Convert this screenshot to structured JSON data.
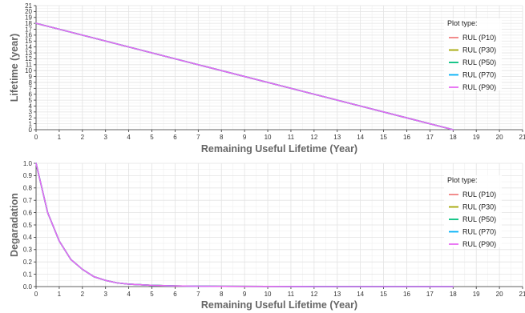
{
  "chart_data": [
    {
      "type": "line",
      "xlabel": "Remaining Useful Lifetime (Year)",
      "ylabel": "Lifetime (year)",
      "xlim": [
        0,
        21
      ],
      "ylim": [
        0,
        21
      ],
      "x_ticks": [
        0,
        1,
        2,
        3,
        4,
        5,
        6,
        7,
        8,
        9,
        10,
        11,
        12,
        13,
        14,
        15,
        16,
        17,
        18,
        19,
        20,
        21
      ],
      "y_ticks": [
        0,
        1,
        2,
        3,
        4,
        5,
        6,
        7,
        8,
        9,
        10,
        11,
        12,
        13,
        14,
        15,
        16,
        17,
        18,
        19,
        20,
        21
      ],
      "grid": true,
      "legend_title": "Plot type:",
      "legend_position": "top-right",
      "series": [
        {
          "name": "RUL (P10)",
          "color": "#f08080",
          "x": [
            0,
            18
          ],
          "y": [
            18,
            0
          ]
        },
        {
          "name": "RUL (P30)",
          "color": "#a3a500",
          "x": [
            0,
            18
          ],
          "y": [
            18,
            0
          ]
        },
        {
          "name": "RUL (P50)",
          "color": "#00bf7d",
          "x": [
            0,
            18
          ],
          "y": [
            18,
            0
          ]
        },
        {
          "name": "RUL (P70)",
          "color": "#00b0f6",
          "x": [
            0,
            18
          ],
          "y": [
            18,
            0
          ]
        },
        {
          "name": "RUL (P90)",
          "color": "#e76bf3",
          "x": [
            0,
            18
          ],
          "y": [
            18,
            0
          ]
        }
      ]
    },
    {
      "type": "line",
      "xlabel": "Remaining Useful Lifetime (Year)",
      "ylabel": "Degaradation",
      "xlim": [
        0,
        21
      ],
      "ylim": [
        0,
        1
      ],
      "x_ticks": [
        0,
        1,
        2,
        3,
        4,
        5,
        6,
        7,
        8,
        9,
        10,
        11,
        12,
        13,
        14,
        15,
        16,
        17,
        18,
        19,
        20,
        21
      ],
      "y_ticks": [
        "0.0",
        "0.1",
        "0.2",
        "0.3",
        "0.4",
        "0.5",
        "0.6",
        "0.7",
        "0.8",
        "0.9",
        "1.0"
      ],
      "grid": true,
      "legend_title": "Plot type:",
      "legend_position": "top-right",
      "series": [
        {
          "name": "RUL (P10)",
          "color": "#f08080",
          "x": [
            0,
            0.5,
            1,
            1.5,
            2,
            2.5,
            3,
            3.5,
            4,
            5,
            6,
            7,
            8,
            10,
            12,
            14,
            16,
            18
          ],
          "y": [
            1.0,
            0.6,
            0.37,
            0.22,
            0.14,
            0.08,
            0.05,
            0.03,
            0.02,
            0.01,
            0.005,
            0.003,
            0.002,
            0.001,
            0.0,
            0.0,
            0.0,
            0.0
          ]
        },
        {
          "name": "RUL (P30)",
          "color": "#a3a500",
          "x": [
            0,
            0.5,
            1,
            1.5,
            2,
            2.5,
            3,
            3.5,
            4,
            5,
            6,
            7,
            8,
            10,
            12,
            14,
            16,
            18
          ],
          "y": [
            1.0,
            0.6,
            0.37,
            0.22,
            0.14,
            0.08,
            0.05,
            0.03,
            0.02,
            0.01,
            0.005,
            0.003,
            0.002,
            0.001,
            0.0,
            0.0,
            0.0,
            0.0
          ]
        },
        {
          "name": "RUL (P50)",
          "color": "#00bf7d",
          "x": [
            0,
            0.5,
            1,
            1.5,
            2,
            2.5,
            3,
            3.5,
            4,
            5,
            6,
            7,
            8,
            10,
            12,
            14,
            16,
            18
          ],
          "y": [
            1.0,
            0.6,
            0.37,
            0.22,
            0.14,
            0.08,
            0.05,
            0.03,
            0.02,
            0.01,
            0.005,
            0.003,
            0.002,
            0.001,
            0.0,
            0.0,
            0.0,
            0.0
          ]
        },
        {
          "name": "RUL (P70)",
          "color": "#00b0f6",
          "x": [
            0,
            0.5,
            1,
            1.5,
            2,
            2.5,
            3,
            3.5,
            4,
            5,
            6,
            7,
            8,
            10,
            12,
            14,
            16,
            18
          ],
          "y": [
            1.0,
            0.6,
            0.37,
            0.22,
            0.14,
            0.08,
            0.05,
            0.03,
            0.02,
            0.01,
            0.005,
            0.003,
            0.002,
            0.001,
            0.0,
            0.0,
            0.0,
            0.0
          ]
        },
        {
          "name": "RUL (P90)",
          "color": "#e76bf3",
          "x": [
            0,
            0.5,
            1,
            1.5,
            2,
            2.5,
            3,
            3.5,
            4,
            5,
            6,
            7,
            8,
            10,
            12,
            14,
            16,
            18
          ],
          "y": [
            1.0,
            0.6,
            0.37,
            0.22,
            0.14,
            0.08,
            0.05,
            0.03,
            0.02,
            0.01,
            0.005,
            0.003,
            0.002,
            0.001,
            0.0,
            0.0,
            0.0,
            0.0
          ]
        }
      ]
    }
  ]
}
